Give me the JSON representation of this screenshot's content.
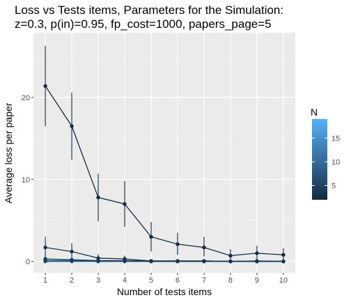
{
  "chart_data": {
    "type": "line",
    "title_line1": "Loss vs Tests items, Parameters for the Simulation:",
    "title_line2": "z=0.3, p(in)=0.95, fp_cost=1000, papers_page=5",
    "xlabel": "Number of tests items",
    "ylabel": "Average loss per paper",
    "x": [
      1,
      2,
      3,
      4,
      5,
      6,
      7,
      8,
      9,
      10
    ],
    "xlim": [
      0.55,
      10.45
    ],
    "ylim": [
      -1.4,
      27.9
    ],
    "x_ticks": [
      1,
      2,
      3,
      4,
      5,
      6,
      7,
      8,
      9,
      10
    ],
    "y_ticks": [
      0,
      10,
      20
    ],
    "grid": true,
    "panel_background": "#ebebeb",
    "legend": {
      "title": "N",
      "position": "right",
      "type": "colorbar",
      "range": [
        2,
        19
      ],
      "breaks": [
        5,
        10,
        15
      ],
      "color_low": "#132b43",
      "color_high": "#56b1f7"
    },
    "series": [
      {
        "N": 2,
        "values": [
          21.4,
          16.5,
          7.8,
          7.0,
          3.0,
          2.1,
          1.7,
          0.7,
          1.0,
          0.8
        ],
        "error_low": [
          16.5,
          12.4,
          4.9,
          4.2,
          1.2,
          0.8,
          0.6,
          0.0,
          0.1,
          0.1
        ],
        "error_high": [
          26.3,
          20.6,
          10.7,
          9.8,
          4.8,
          3.5,
          3.0,
          1.5,
          1.9,
          1.6
        ]
      },
      {
        "N": 3,
        "values": [
          1.7,
          1.2,
          0.4,
          0.3,
          0.05,
          0.05,
          0.05,
          0.0,
          0.05,
          0.0
        ],
        "error_low": [
          0.6,
          0.3,
          0.0,
          0.0,
          0.0,
          0.0,
          0.0,
          0.0,
          0.0,
          0.0
        ],
        "error_high": [
          3.0,
          2.2,
          0.9,
          0.7,
          0.2,
          0.2,
          0.2,
          0.1,
          0.2,
          0.1
        ]
      },
      {
        "N": 4,
        "values": [
          0.3,
          0.2,
          0.1,
          0.1,
          0.05,
          0.05,
          0.05,
          0.0,
          0.0,
          0.0
        ],
        "error_low": [
          0.0,
          0.0,
          0.0,
          0.0,
          0.0,
          0.0,
          0.0,
          0.0,
          0.0,
          0.0
        ],
        "error_high": [
          0.8,
          0.5,
          0.3,
          0.3,
          0.2,
          0.1,
          0.1,
          0.1,
          0.1,
          0.1
        ]
      },
      {
        "N": 6,
        "values": [
          0.1,
          0.1,
          0.05,
          0.05,
          0.0,
          0.0,
          0.0,
          0.0,
          0.0,
          0.0
        ]
      },
      {
        "N": 8,
        "values": [
          0.05,
          0.05,
          0.0,
          0.0,
          0.0,
          0.0,
          0.0,
          0.0,
          0.0,
          0.0
        ]
      },
      {
        "N": 11,
        "values": [
          0.0,
          0.0,
          0.0,
          0.0,
          0.0,
          0.0,
          0.0,
          0.0,
          0.0,
          0.0
        ]
      },
      {
        "N": 14,
        "values": [
          0.0,
          0.0,
          0.0,
          0.0,
          0.0,
          0.0,
          0.0,
          0.0,
          0.0,
          0.0
        ]
      },
      {
        "N": 17,
        "values": [
          0.0,
          0.0,
          0.0,
          0.0,
          0.0,
          0.0,
          0.0,
          0.0,
          0.0,
          0.0
        ]
      },
      {
        "N": 19,
        "values": [
          0.0,
          0.0,
          0.0,
          0.0,
          0.0,
          0.0,
          0.0,
          0.0,
          0.0,
          0.0
        ]
      }
    ]
  }
}
